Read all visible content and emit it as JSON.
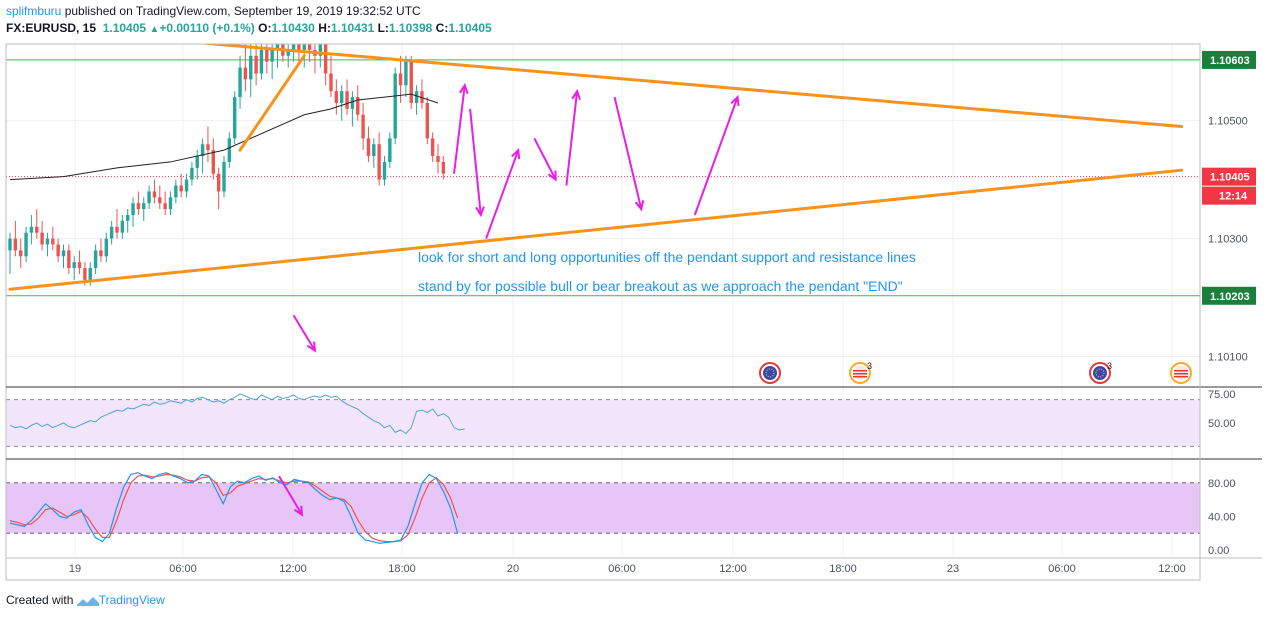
{
  "header": {
    "author": "splifmburu",
    "published": "published on TradingView.com, September 19, 2019 19:32:52 UTC",
    "symbol": "FX:EURUSD, 15",
    "last": "1.10405",
    "change": "+0.00110 (+0.1%)",
    "o_label": "O:",
    "o_value": "1.10430",
    "h_label": "H:",
    "h_value": "1.10431",
    "l_label": "L:",
    "l_value": "1.10398",
    "c_label": "C:",
    "c_value": "1.10405"
  },
  "footer": {
    "created_with": "Created with",
    "brand": "TradingView"
  },
  "colors": {
    "up": "#26a69a",
    "down": "#ef5350",
    "trend": "#f7931a",
    "arrow": "#e91ee6",
    "ma": "#222222",
    "annotation": "#2196f3",
    "rsi": "#4fa3d8",
    "stoch_k": "#2196f3",
    "stoch_d": "#ef5350",
    "rsi_band": "#f3e5fc",
    "stoch_band": "#e7c6f7",
    "level_line": "#4caf50",
    "price_tag": "#f23645"
  },
  "chart_data": {
    "type": "candlestick",
    "symbol": "FX:EURUSD",
    "interval": "15",
    "price_range": [
      1.1005,
      1.1063
    ],
    "x_ticks": [
      "19",
      "06:00",
      "12:00",
      "18:00",
      "20",
      "06:00",
      "12:00",
      "18:00",
      "23",
      "06:00",
      "12:00"
    ],
    "y_ticks": [
      "1.10500",
      "1.10300",
      "1.10100"
    ],
    "price_labels": [
      {
        "label": "1.10603",
        "value": 1.10603,
        "style": "level"
      },
      {
        "label": "1.10405",
        "value": 1.10405,
        "style": "last"
      },
      {
        "label": "12:14",
        "value": 1.1035,
        "style": "countdown"
      },
      {
        "label": "1.10203",
        "value": 1.10203,
        "style": "level"
      }
    ],
    "horizontal_levels": [
      1.10603,
      1.10203
    ],
    "last_price_line": 1.10405,
    "candles": [
      [
        1.1028,
        1.1031,
        1.1024,
        1.103
      ],
      [
        1.103,
        1.1033,
        1.1027,
        1.1028
      ],
      [
        1.1028,
        1.103,
        1.1025,
        1.1027
      ],
      [
        1.1027,
        1.1032,
        1.1026,
        1.1031
      ],
      [
        1.1031,
        1.1034,
        1.1029,
        1.1032
      ],
      [
        1.1032,
        1.1035,
        1.103,
        1.1031
      ],
      [
        1.1031,
        1.1033,
        1.1028,
        1.1029
      ],
      [
        1.1029,
        1.1031,
        1.1027,
        1.103
      ],
      [
        1.103,
        1.1032,
        1.1028,
        1.1029
      ],
      [
        1.1029,
        1.103,
        1.1026,
        1.1027
      ],
      [
        1.1027,
        1.1029,
        1.1025,
        1.1028
      ],
      [
        1.1028,
        1.1029,
        1.1024,
        1.1025
      ],
      [
        1.1025,
        1.1027,
        1.1023,
        1.1026
      ],
      [
        1.1026,
        1.1028,
        1.1024,
        1.1025
      ],
      [
        1.1025,
        1.1026,
        1.1022,
        1.1023
      ],
      [
        1.1023,
        1.1026,
        1.1022,
        1.1025
      ],
      [
        1.1025,
        1.1029,
        1.1024,
        1.1028
      ],
      [
        1.1028,
        1.103,
        1.1026,
        1.1027
      ],
      [
        1.1027,
        1.1031,
        1.1026,
        1.103
      ],
      [
        1.103,
        1.1033,
        1.1029,
        1.1032
      ],
      [
        1.1032,
        1.1035,
        1.103,
        1.1031
      ],
      [
        1.1031,
        1.1034,
        1.103,
        1.1033
      ],
      [
        1.1033,
        1.1035,
        1.1031,
        1.1034
      ],
      [
        1.1034,
        1.1037,
        1.1032,
        1.1036
      ],
      [
        1.1036,
        1.1038,
        1.1034,
        1.1035
      ],
      [
        1.1035,
        1.1037,
        1.1033,
        1.1036
      ],
      [
        1.1036,
        1.1039,
        1.1035,
        1.1038
      ],
      [
        1.1038,
        1.104,
        1.1036,
        1.1037
      ],
      [
        1.1037,
        1.1039,
        1.1035,
        1.1036
      ],
      [
        1.1036,
        1.1038,
        1.1034,
        1.1035
      ],
      [
        1.1035,
        1.1038,
        1.1034,
        1.1037
      ],
      [
        1.1037,
        1.104,
        1.1036,
        1.1039
      ],
      [
        1.1039,
        1.1041,
        1.1037,
        1.1038
      ],
      [
        1.1038,
        1.1041,
        1.1037,
        1.104
      ],
      [
        1.104,
        1.1043,
        1.1039,
        1.1042
      ],
      [
        1.1042,
        1.1045,
        1.104,
        1.1044
      ],
      [
        1.1044,
        1.1047,
        1.1041,
        1.1046
      ],
      [
        1.1046,
        1.1049,
        1.1043,
        1.1045
      ],
      [
        1.1045,
        1.1047,
        1.104,
        1.1041
      ],
      [
        1.1041,
        1.1042,
        1.1035,
        1.1038
      ],
      [
        1.1038,
        1.1044,
        1.1037,
        1.1043
      ],
      [
        1.1043,
        1.1048,
        1.1042,
        1.1047
      ],
      [
        1.1047,
        1.1055,
        1.1046,
        1.1054
      ],
      [
        1.1054,
        1.1061,
        1.1052,
        1.1059
      ],
      [
        1.1059,
        1.1063,
        1.1055,
        1.1057
      ],
      [
        1.1057,
        1.1063,
        1.1054,
        1.1061
      ],
      [
        1.1061,
        1.1063,
        1.1056,
        1.1058
      ],
      [
        1.1058,
        1.1063,
        1.1057,
        1.1062
      ],
      [
        1.1062,
        1.1063,
        1.1058,
        1.106
      ],
      [
        1.106,
        1.1063,
        1.1057,
        1.1062
      ],
      [
        1.1062,
        1.1063,
        1.1059,
        1.1063
      ],
      [
        1.1063,
        1.1063,
        1.106,
        1.1061
      ],
      [
        1.1061,
        1.1063,
        1.1059,
        1.1062
      ],
      [
        1.1062,
        1.1063,
        1.106,
        1.1063
      ],
      [
        1.1063,
        1.1063,
        1.106,
        1.1062
      ],
      [
        1.1062,
        1.1063,
        1.1059,
        1.1063
      ],
      [
        1.1063,
        1.1063,
        1.106,
        1.1062
      ],
      [
        1.1062,
        1.1063,
        1.1058,
        1.1061
      ],
      [
        1.1061,
        1.1063,
        1.1059,
        1.1063
      ],
      [
        1.1063,
        1.1063,
        1.1056,
        1.1058
      ],
      [
        1.1058,
        1.1061,
        1.1054,
        1.1055
      ],
      [
        1.1055,
        1.1057,
        1.1051,
        1.1053
      ],
      [
        1.1053,
        1.1056,
        1.105,
        1.1055
      ],
      [
        1.1055,
        1.1057,
        1.1051,
        1.1052
      ],
      [
        1.1052,
        1.1055,
        1.1049,
        1.1054
      ],
      [
        1.1054,
        1.1056,
        1.105,
        1.1051
      ],
      [
        1.1051,
        1.1053,
        1.1045,
        1.1047
      ],
      [
        1.1047,
        1.1049,
        1.1043,
        1.1044
      ],
      [
        1.1044,
        1.1047,
        1.1042,
        1.1046
      ],
      [
        1.1046,
        1.1048,
        1.1039,
        1.104
      ],
      [
        1.104,
        1.1044,
        1.1039,
        1.1043
      ],
      [
        1.1043,
        1.1048,
        1.1042,
        1.1047
      ],
      [
        1.1047,
        1.1059,
        1.1046,
        1.1058
      ],
      [
        1.1058,
        1.1061,
        1.1053,
        1.1056
      ],
      [
        1.1056,
        1.1061,
        1.1054,
        1.106
      ],
      [
        1.106,
        1.1061,
        1.1052,
        1.1053
      ],
      [
        1.1053,
        1.1056,
        1.1051,
        1.1055
      ],
      [
        1.1055,
        1.1057,
        1.1052,
        1.1053
      ],
      [
        1.1053,
        1.1054,
        1.1046,
        1.1047
      ],
      [
        1.1047,
        1.1048,
        1.1043,
        1.1044
      ],
      [
        1.1044,
        1.1046,
        1.1041,
        1.1043
      ],
      [
        1.1043,
        1.1044,
        1.104,
        1.1041
      ]
    ],
    "moving_average": [
      [
        0,
        1.104
      ],
      [
        10,
        1.10405
      ],
      [
        20,
        1.1042
      ],
      [
        30,
        1.1043
      ],
      [
        40,
        1.1045
      ],
      [
        50,
        1.1049
      ],
      [
        55,
        1.1051
      ],
      [
        60,
        1.1052
      ],
      [
        65,
        1.10535
      ],
      [
        70,
        1.1054
      ],
      [
        75,
        1.10545
      ],
      [
        80,
        1.1053
      ]
    ],
    "trendlines": [
      {
        "from": [
          -0.5,
          1.1066
        ],
        "to": [
          219,
          1.1049
        ]
      },
      {
        "from": [
          0,
          1.10214
        ],
        "to": [
          219,
          1.10416
        ]
      },
      {
        "from": [
          43,
          1.1045
        ],
        "to": [
          55,
          1.1061
        ]
      }
    ],
    "projection_arrows": [
      [
        [
          83,
          1.1041
        ],
        [
          85,
          1.1056
        ]
      ],
      [
        [
          86,
          1.1052
        ],
        [
          88,
          1.1034
        ]
      ],
      [
        [
          89,
          1.103
        ],
        [
          95,
          1.1045
        ]
      ],
      [
        [
          98,
          1.1047
        ],
        [
          102,
          1.104
        ]
      ],
      [
        [
          104,
          1.1039
        ],
        [
          106,
          1.1055
        ]
      ],
      [
        [
          113,
          1.1054
        ],
        [
          118,
          1.1035
        ]
      ],
      [
        [
          128,
          1.1034
        ],
        [
          136,
          1.1054
        ]
      ],
      [
        [
          53,
          1.1017
        ],
        [
          57,
          1.1011
        ]
      ]
    ],
    "annotations": [
      "look for short and long opportunities off the pendant support and resistance lines",
      "stand by for possible bull or bear breakout as we approach the pendant \"END\""
    ],
    "event_icons": [
      {
        "type": "eu",
        "at": 148,
        "count": ""
      },
      {
        "type": "us",
        "at": 166,
        "count": "3"
      },
      {
        "type": "eu",
        "at": 213,
        "count": "3"
      },
      {
        "type": "us",
        "at": 229,
        "count": ""
      }
    ],
    "rsi": {
      "range": [
        20,
        80
      ],
      "ticks": [
        "75.00",
        "50.00"
      ],
      "band": [
        30,
        70
      ],
      "values": [
        48,
        46,
        47,
        45,
        48,
        50,
        47,
        49,
        46,
        48,
        50,
        47,
        46,
        48,
        50,
        52,
        51,
        55,
        57,
        59,
        61,
        60,
        63,
        62,
        64,
        66,
        65,
        68,
        66,
        67,
        69,
        68,
        67,
        70,
        68,
        71,
        72,
        70,
        68,
        69,
        67,
        70,
        72,
        75,
        73,
        71,
        70,
        74,
        72,
        70,
        73,
        71,
        72,
        74,
        71,
        70,
        72,
        73,
        72,
        74,
        72,
        73,
        69,
        66,
        64,
        62,
        58,
        55,
        52,
        50,
        46,
        48,
        42,
        44,
        41,
        46,
        60,
        61,
        59,
        62,
        56,
        58,
        55,
        46,
        44,
        45
      ]
    },
    "stochastic": {
      "range": [
        0,
        100
      ],
      "ticks": [
        "80.00",
        "40.00",
        "0.00"
      ],
      "band": [
        20,
        80
      ],
      "k": [
        32,
        30,
        28,
        35,
        45,
        55,
        48,
        40,
        38,
        45,
        48,
        30,
        15,
        10,
        20,
        50,
        75,
        90,
        92,
        88,
        85,
        90,
        92,
        88,
        85,
        80,
        82,
        90,
        88,
        72,
        55,
        75,
        82,
        80,
        85,
        88,
        83,
        86,
        80,
        78,
        84,
        82,
        80,
        72,
        65,
        60,
        62,
        58,
        40,
        20,
        12,
        10,
        8,
        9,
        10,
        12,
        28,
        55,
        80,
        90,
        85,
        70,
        50,
        20
      ],
      "d": [
        35,
        33,
        30,
        31,
        38,
        48,
        50,
        45,
        40,
        42,
        46,
        38,
        25,
        15,
        15,
        35,
        60,
        80,
        88,
        89,
        87,
        88,
        90,
        89,
        87,
        83,
        82,
        86,
        87,
        80,
        65,
        68,
        76,
        79,
        82,
        85,
        84,
        85,
        82,
        80,
        82,
        82,
        81,
        76,
        70,
        64,
        62,
        60,
        52,
        35,
        22,
        14,
        11,
        10,
        10,
        11,
        18,
        38,
        62,
        80,
        86,
        78,
        62,
        38
      ],
      "arrow": [
        [
          12,
          88
        ],
        [
          18,
          42
        ]
      ]
    }
  }
}
